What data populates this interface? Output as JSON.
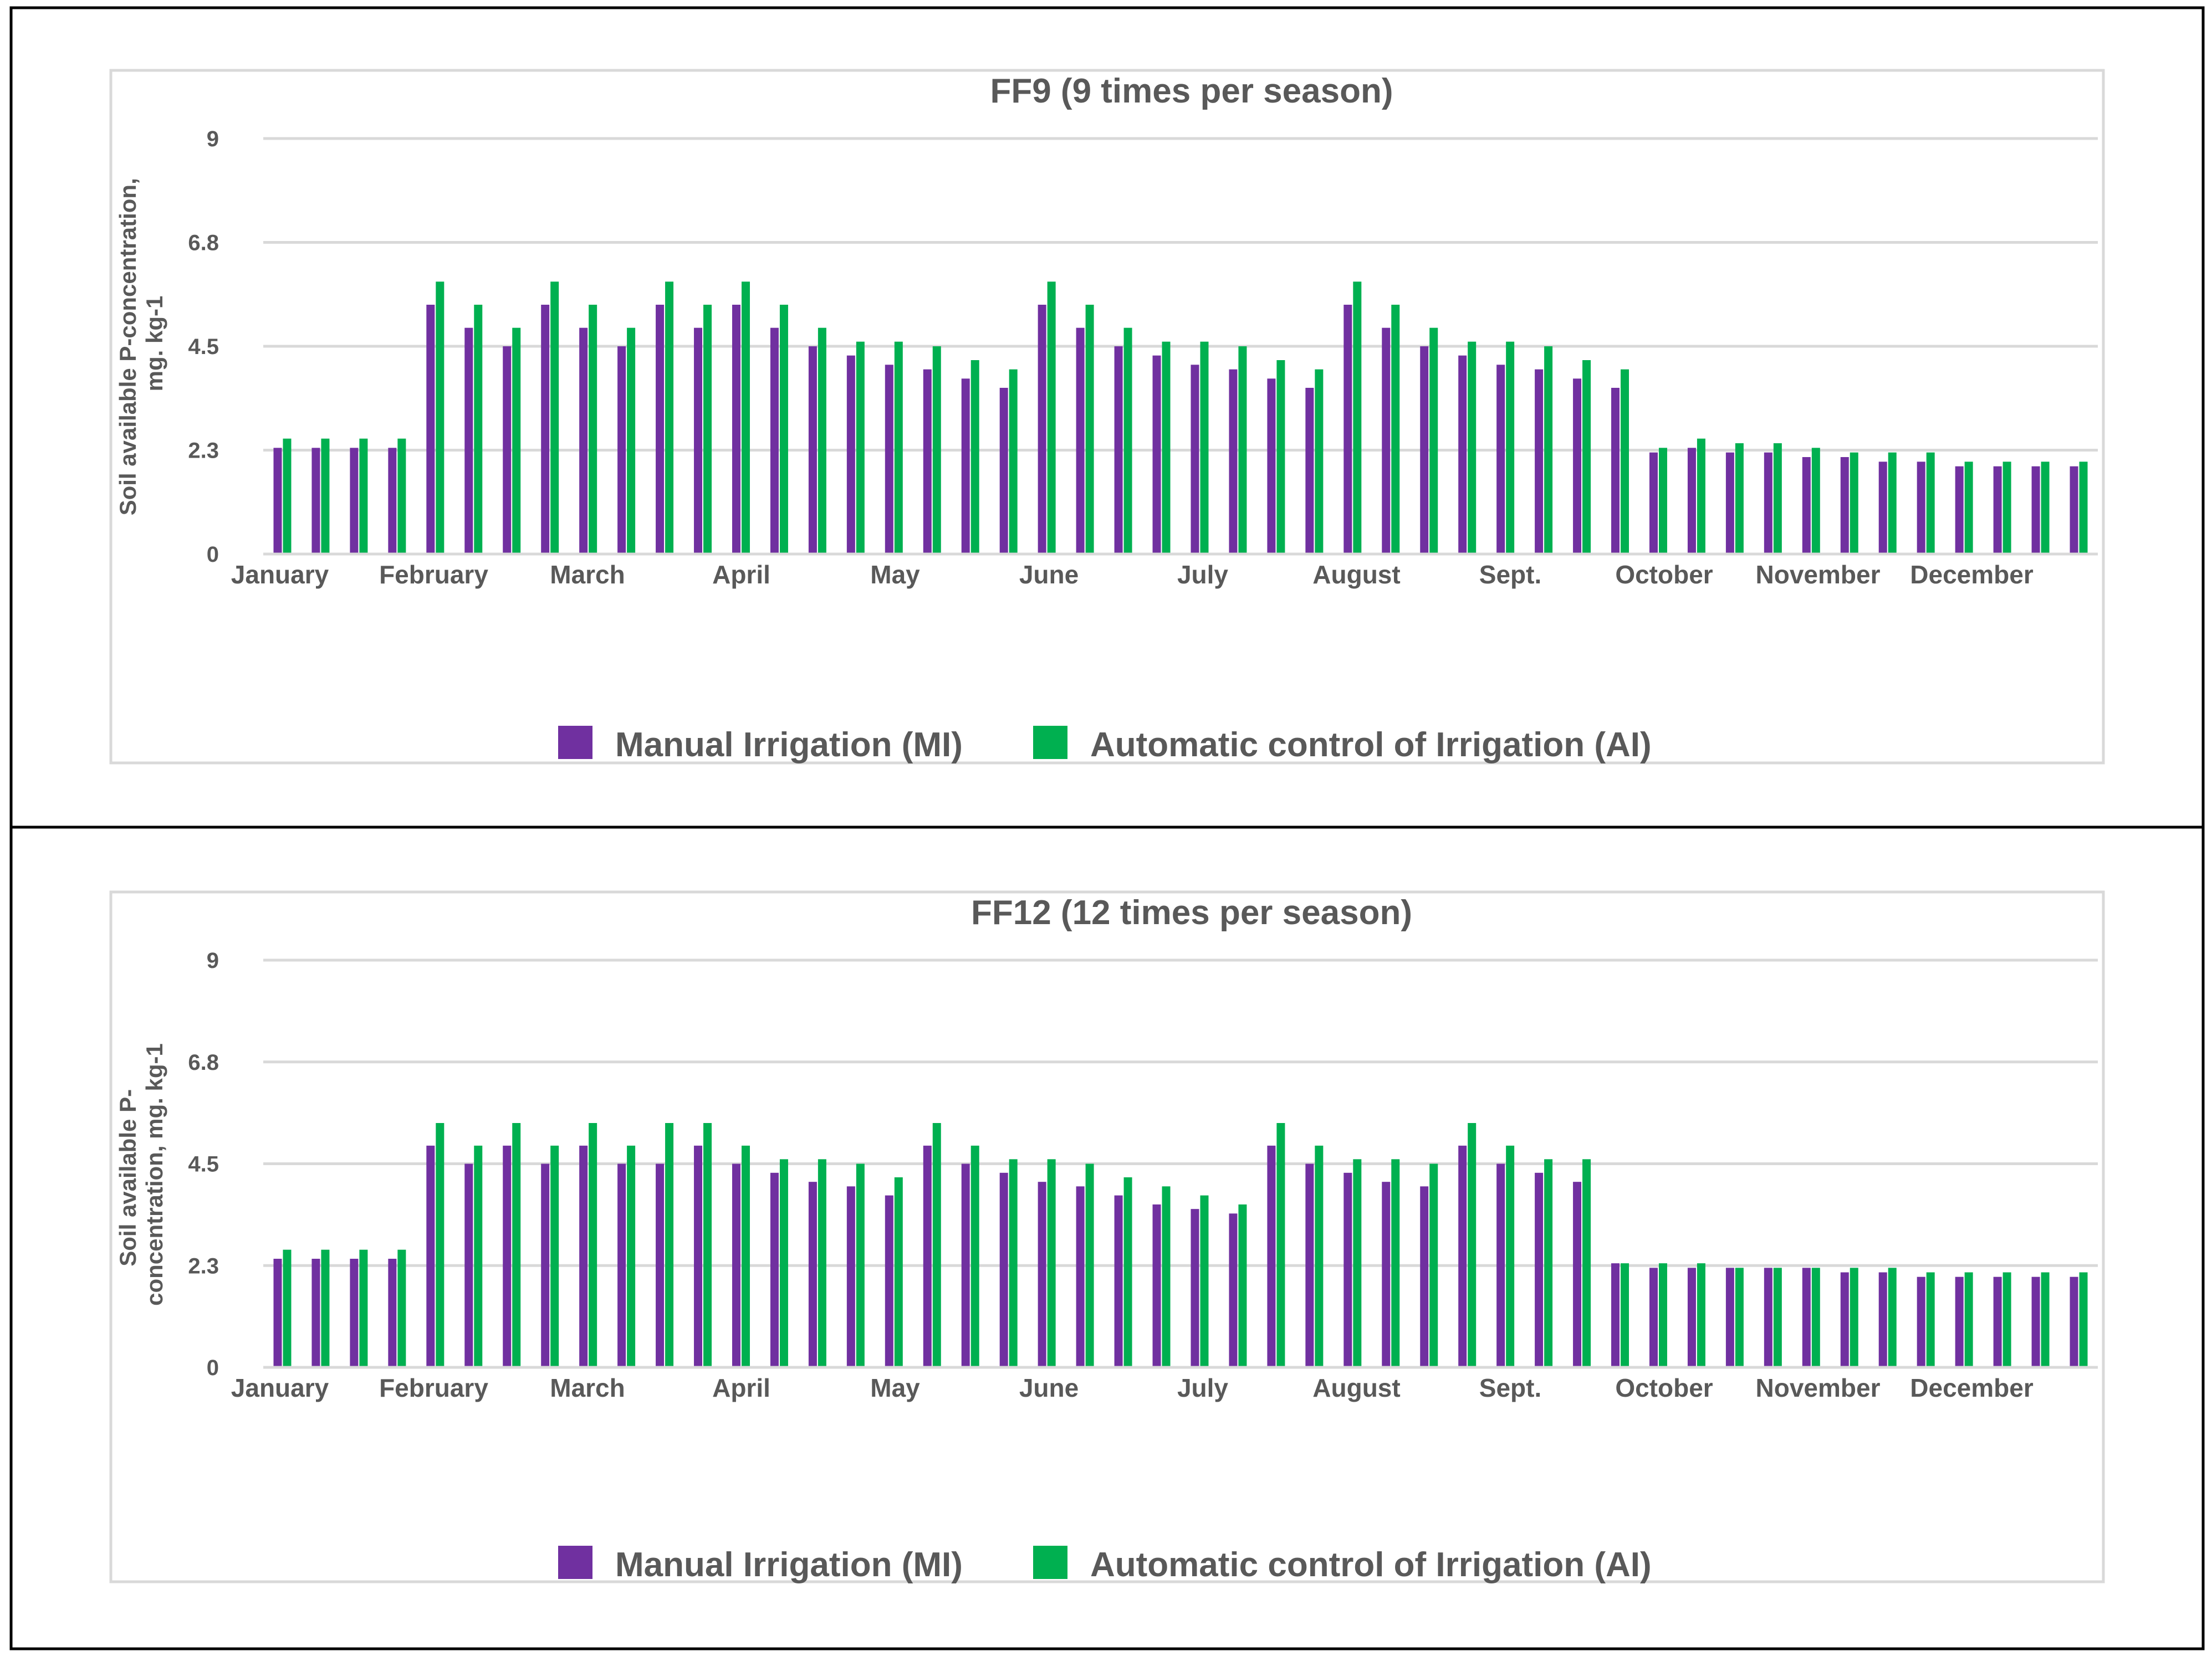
{
  "colors": {
    "manual": "#7030A0",
    "automatic": "#00B050",
    "grid": "#D9D9D9",
    "text": "#595959",
    "frame": "#000000",
    "chart_border": "#D9D9D9"
  },
  "chart_data": [
    {
      "type": "bar",
      "title": "FF9 (9 times per season)",
      "ylabel_lines": [
        "Soil available P-concentration,",
        "mg. kg-1"
      ],
      "ylim": [
        0,
        9
      ],
      "yticks": [
        "0",
        "2.3",
        "4.5",
        "6.8",
        "9"
      ],
      "ytick_values": [
        0,
        2.25,
        4.5,
        6.75,
        9
      ],
      "month_labels": [
        "January",
        "February",
        "March",
        "April",
        "May",
        "June",
        "July",
        "August",
        "Sept.",
        "October",
        "November",
        "December"
      ],
      "legend": [
        "Manual Irrigation (MI)",
        "Automatic control of Irrigation (AI)"
      ],
      "series": [
        {
          "name": "Manual Irrigation (MI)",
          "values": [
            2.3,
            2.3,
            2.3,
            2.3,
            5.4,
            4.9,
            4.5,
            5.4,
            4.9,
            4.5,
            5.4,
            4.9,
            5.4,
            4.9,
            4.5,
            4.3,
            4.1,
            4.0,
            3.8,
            3.6,
            5.4,
            4.9,
            4.5,
            4.3,
            4.1,
            4.0,
            3.8,
            3.6,
            5.4,
            4.9,
            4.5,
            4.3,
            4.1,
            4.0,
            3.8,
            3.6,
            2.2,
            2.3,
            2.2,
            2.2,
            2.1,
            2.1,
            2.0,
            2.0,
            1.9,
            1.9,
            1.9,
            1.9
          ]
        },
        {
          "name": "Automatic control of Irrigation (AI)",
          "values": [
            2.5,
            2.5,
            2.5,
            2.5,
            5.9,
            5.4,
            4.9,
            5.9,
            5.4,
            4.9,
            5.9,
            5.4,
            5.9,
            5.4,
            4.9,
            4.6,
            4.6,
            4.5,
            4.2,
            4.0,
            5.9,
            5.4,
            4.9,
            4.6,
            4.6,
            4.5,
            4.2,
            4.0,
            5.9,
            5.4,
            4.9,
            4.6,
            4.6,
            4.5,
            4.2,
            4.0,
            2.3,
            2.5,
            2.4,
            2.4,
            2.3,
            2.2,
            2.2,
            2.2,
            2.0,
            2.0,
            2.0,
            2.0
          ]
        }
      ]
    },
    {
      "type": "bar",
      "title": "FF12 (12 times per season)",
      "ylabel_lines": [
        "Soil available P-",
        "concentration, mg. kg-1"
      ],
      "ylim": [
        0,
        9
      ],
      "yticks": [
        "0",
        "2.3",
        "4.5",
        "6.8",
        "9"
      ],
      "ytick_values": [
        0,
        2.25,
        4.5,
        6.75,
        9
      ],
      "month_labels": [
        "January",
        "February",
        "March",
        "April",
        "May",
        "June",
        "July",
        "August",
        "Sept.",
        "October",
        "November",
        "December"
      ],
      "legend": [
        "Manual Irrigation (MI)",
        "Automatic control of Irrigation (AI)"
      ],
      "series": [
        {
          "name": "Manual Irrigation (MI)",
          "values": [
            2.4,
            2.4,
            2.4,
            2.4,
            4.9,
            4.5,
            4.9,
            4.5,
            4.9,
            4.5,
            4.5,
            4.9,
            4.5,
            4.3,
            4.1,
            4.0,
            3.8,
            4.9,
            4.5,
            4.3,
            4.1,
            4.0,
            3.8,
            3.6,
            3.5,
            3.4,
            4.9,
            4.5,
            4.3,
            4.1,
            4.0,
            4.9,
            4.5,
            4.3,
            4.1,
            2.3,
            2.2,
            2.2,
            2.2,
            2.2,
            2.2,
            2.1,
            2.1,
            2.0,
            2.0,
            2.0,
            2.0,
            2.0
          ]
        },
        {
          "name": "Automatic control of Irrigation (AI)",
          "values": [
            2.6,
            2.6,
            2.6,
            2.6,
            5.4,
            4.9,
            5.4,
            4.9,
            5.4,
            4.9,
            5.4,
            5.4,
            4.9,
            4.6,
            4.6,
            4.5,
            4.2,
            5.4,
            4.9,
            4.6,
            4.6,
            4.5,
            4.2,
            4.0,
            3.8,
            3.6,
            5.4,
            4.9,
            4.6,
            4.6,
            4.5,
            5.4,
            4.9,
            4.6,
            4.6,
            2.3,
            2.3,
            2.3,
            2.2,
            2.2,
            2.2,
            2.2,
            2.2,
            2.1,
            2.1,
            2.1,
            2.1,
            2.1
          ]
        }
      ]
    }
  ]
}
